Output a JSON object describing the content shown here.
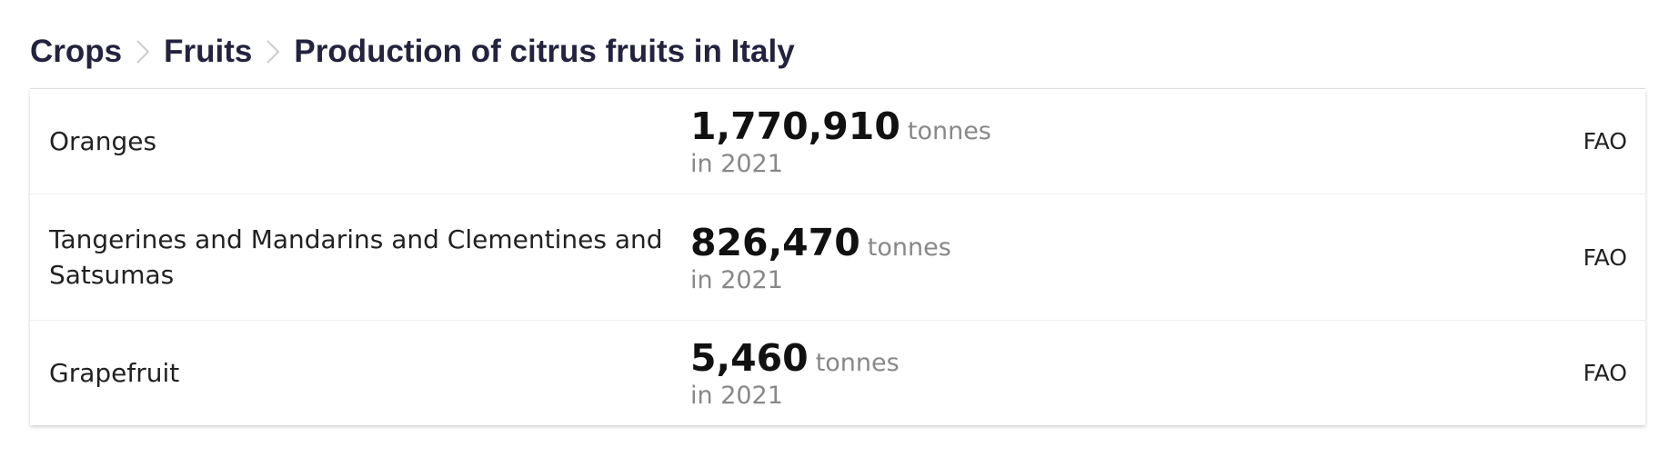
{
  "breadcrumb": [
    "Crops",
    "Fruits",
    "Production of citrus fruits in Italy"
  ],
  "table": {
    "rows": [
      {
        "name": "Oranges",
        "value": "1,770,910",
        "unit": "tonnes",
        "period": "in 2021",
        "source": "FAO"
      },
      {
        "name": "Tangerines and Mandarins and Clementines and Satsumas",
        "value": "826,470",
        "unit": "tonnes",
        "period": "in 2021",
        "source": "FAO"
      },
      {
        "name": "Grapefruit",
        "value": "5,460",
        "unit": "tonnes",
        "period": "in 2021",
        "source": "FAO"
      }
    ]
  }
}
